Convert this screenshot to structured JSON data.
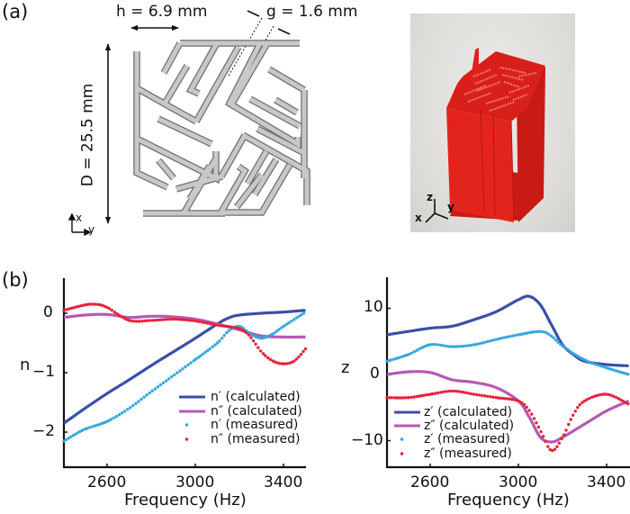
{
  "figure": {
    "panel_a": {
      "label": "(a)",
      "dimensions": {
        "h_label": "h = 6.9 mm",
        "g_label": "g = 1.6 mm",
        "D_label": "D = 25.5 mm"
      },
      "diagram_axes": {
        "x": "x",
        "y": "y"
      },
      "photo_axes": {
        "x": "x",
        "y": "y",
        "z": "z"
      },
      "colors": {
        "structure_fill": "#c8c8c8",
        "structure_stroke": "#6e6e6e",
        "print_red": "#e0231e"
      }
    },
    "panel_b": {
      "label": "(b)"
    }
  },
  "chart_data": [
    {
      "type": "line",
      "title": "",
      "xlabel": "Frequency (Hz)",
      "ylabel": "n",
      "xlim": [
        2400,
        3500
      ],
      "ylim": [
        -2.6,
        0.6
      ],
      "xticks": [
        2600,
        3000,
        3400
      ],
      "yticks": [
        0,
        -1,
        -2
      ],
      "ytick_labels": [
        "0",
        "−1",
        "−2"
      ],
      "grid": false,
      "legend_position": "lower right",
      "series": [
        {
          "name": "n′ (calculated)",
          "style": "line",
          "color": "#3a4fa8",
          "x": [
            2404,
            2500,
            2600,
            2700,
            2800,
            2900,
            3000,
            3100,
            3150,
            3200,
            3300,
            3400,
            3500
          ],
          "y": [
            -1.85,
            -1.6,
            -1.35,
            -1.12,
            -0.88,
            -0.65,
            -0.42,
            -0.18,
            -0.08,
            -0.03,
            0.0,
            0.02,
            0.05
          ]
        },
        {
          "name": "n″ (calculated)",
          "style": "line",
          "color": "#b659b3",
          "x": [
            2404,
            2500,
            2600,
            2700,
            2800,
            2900,
            3000,
            3100,
            3200,
            3300,
            3400,
            3500
          ],
          "y": [
            -0.07,
            -0.03,
            -0.02,
            -0.07,
            -0.05,
            -0.06,
            -0.1,
            -0.18,
            -0.28,
            -0.38,
            -0.4,
            -0.4
          ]
        },
        {
          "name": "n′ (measured)",
          "style": "dots",
          "color": "#35a7df",
          "x": [
            2404,
            2450,
            2500,
            2600,
            2700,
            2800,
            2900,
            3000,
            3100,
            3150,
            3200,
            3250,
            3300,
            3350,
            3400,
            3500
          ],
          "y": [
            -2.15,
            -2.05,
            -1.95,
            -1.82,
            -1.6,
            -1.32,
            -1.05,
            -0.78,
            -0.5,
            -0.3,
            -0.22,
            -0.35,
            -0.42,
            -0.35,
            -0.22,
            0.02
          ]
        },
        {
          "name": "n″ (measured)",
          "style": "dots",
          "color": "#e8213a",
          "x": [
            2404,
            2500,
            2550,
            2600,
            2700,
            2800,
            2900,
            3000,
            3100,
            3200,
            3250,
            3300,
            3350,
            3400,
            3450,
            3500
          ],
          "y": [
            0.05,
            0.14,
            0.15,
            0.1,
            -0.12,
            -0.12,
            -0.1,
            -0.13,
            -0.2,
            -0.26,
            -0.4,
            -0.65,
            -0.8,
            -0.85,
            -0.8,
            -0.6
          ]
        }
      ]
    },
    {
      "type": "line",
      "title": "",
      "xlabel": "Frequency (Hz)",
      "ylabel": "z",
      "xlim": [
        2400,
        3510
      ],
      "ylim": [
        -14,
        15
      ],
      "xticks": [
        2600,
        3000,
        3400
      ],
      "yticks": [
        10,
        0,
        -10
      ],
      "ytick_labels": [
        "10",
        "0",
        "−10"
      ],
      "grid": false,
      "legend_position": "lower left",
      "series": [
        {
          "name": "z′ (calculated)",
          "style": "line",
          "color": "#3a4fa8",
          "x": [
            2404,
            2500,
            2600,
            2700,
            2800,
            2900,
            3000,
            3050,
            3100,
            3150,
            3200,
            3250,
            3300,
            3400,
            3500
          ],
          "y": [
            6,
            6.5,
            7,
            7.3,
            8.3,
            9.5,
            11.3,
            11.8,
            10.5,
            7.5,
            4.5,
            3,
            2,
            1.5,
            1.3
          ]
        },
        {
          "name": "z″ (calculated)",
          "style": "line",
          "color": "#b659b3",
          "x": [
            2404,
            2500,
            2600,
            2700,
            2800,
            2900,
            3000,
            3050,
            3100,
            3150,
            3200,
            3300,
            3400,
            3500
          ],
          "y": [
            0,
            0.4,
            0.3,
            -0.8,
            -1.2,
            -2,
            -4,
            -6.5,
            -9.5,
            -10.2,
            -9.5,
            -7.5,
            -5.5,
            -4
          ]
        },
        {
          "name": "z′ (measured)",
          "style": "dots",
          "color": "#35a7df",
          "x": [
            2404,
            2500,
            2600,
            2700,
            2800,
            2900,
            3000,
            3100,
            3150,
            3200,
            3300,
            3400,
            3500
          ],
          "y": [
            2,
            3,
            4.5,
            4.2,
            4.5,
            5.3,
            6,
            6.5,
            5.8,
            4.3,
            2.2,
            1,
            0
          ]
        },
        {
          "name": "z″ (measured)",
          "style": "dots",
          "color": "#e8213a",
          "x": [
            2404,
            2500,
            2600,
            2700,
            2800,
            2900,
            3000,
            3050,
            3100,
            3150,
            3200,
            3250,
            3300,
            3400,
            3500
          ],
          "y": [
            -3.5,
            -3.5,
            -3,
            -2.5,
            -3,
            -3.5,
            -4,
            -5.5,
            -8.5,
            -11.5,
            -9.5,
            -6,
            -4,
            -3,
            -4.5
          ]
        }
      ]
    }
  ]
}
